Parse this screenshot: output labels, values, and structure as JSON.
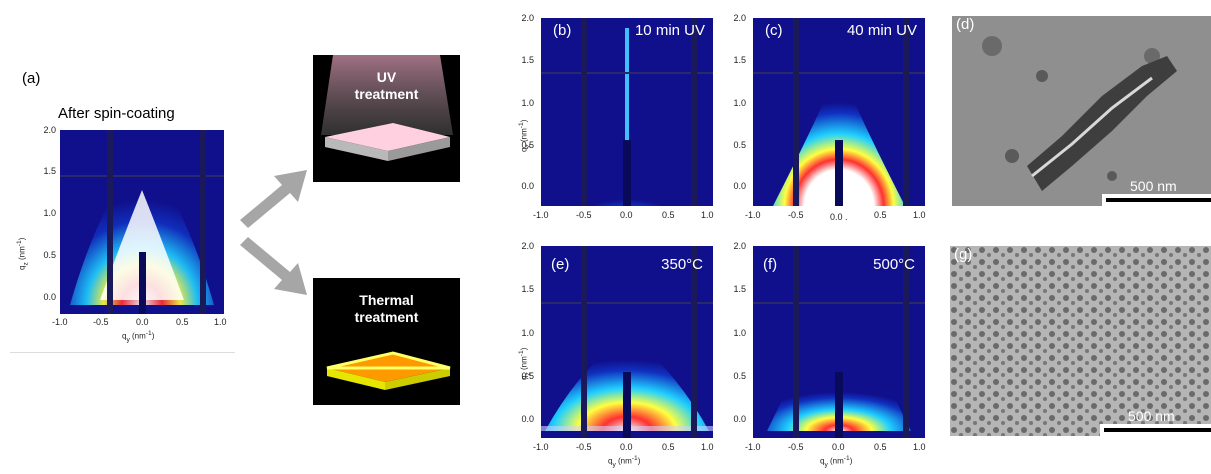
{
  "panel_a": {
    "label": "(a)",
    "caption": "After spin-coating"
  },
  "treatments": [
    {
      "line1": "UV",
      "line2": "treatment"
    },
    {
      "line1": "Thermal",
      "line2": "treatment"
    }
  ],
  "gisaxs": [
    {
      "letter": "(b)",
      "title": "10 min UV"
    },
    {
      "letter": "(c)",
      "title": "40 min UV"
    },
    {
      "letter": "(e)",
      "title": "350°C"
    },
    {
      "letter": "(f)",
      "title": "500°C"
    }
  ],
  "sem": [
    {
      "letter": "(d)",
      "scale": "500 nm"
    },
    {
      "letter": "(g)",
      "scale": "500 nm"
    }
  ],
  "axes": {
    "x_ticks": [
      "-1.0",
      "-0.5",
      "0.0",
      "0.5",
      "1.0"
    ],
    "y_ticks": [
      "2.0",
      "1.5",
      "1.0",
      "0.5",
      "0.0"
    ],
    "xlabel_a": "q",
    "xlabel_a_sub": "y",
    "xlabel_a_unit": "(nm",
    "ylabel_q": "q",
    "ylabel_sub": "z",
    "ylabel_unit": "(nm",
    "xlabel_partial": "q",
    "xlabel_partial_sub": "y",
    "xlabel_c_fragment": "0.0 ."
  },
  "colors": {
    "plot_bg": "#10108c",
    "uv_glow": "#f7c6dc",
    "thermal": "#ff9900",
    "arrow": "#a6a6a6"
  }
}
